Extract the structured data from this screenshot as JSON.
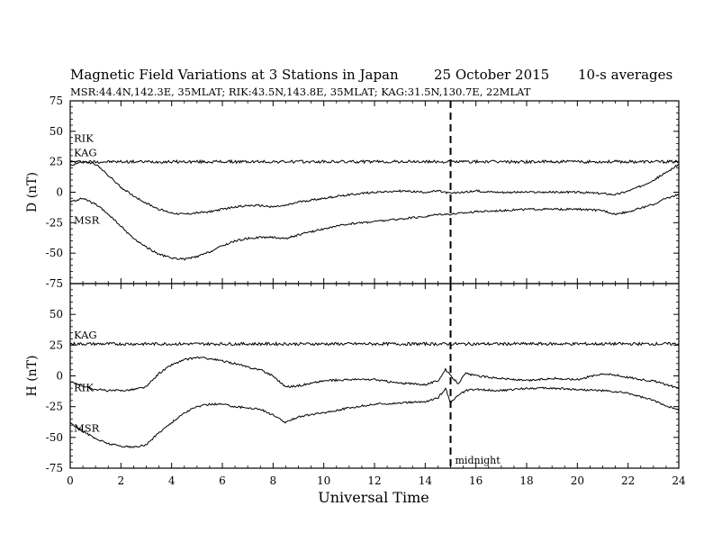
{
  "figure": {
    "title_left": "Magnetic Field Variations at 3 Stations in Japan",
    "title_date": "25 October 2015",
    "title_right": "10-s averages",
    "subtitle": "MSR:44.4N,142.3E, 35MLAT;  RIK:43.5N,143.8E, 35MLAT;  KAG:31.5N,130.7E, 22MLAT"
  },
  "chart_data": [
    {
      "type": "line",
      "title": "",
      "xlabel": "Universal Time",
      "ylabel": "D (nT)",
      "xlim": [
        0,
        24
      ],
      "ylim": [
        -75,
        75
      ],
      "x_ticks": [
        0,
        2,
        4,
        6,
        8,
        10,
        12,
        14,
        16,
        18,
        20,
        22,
        24
      ],
      "y_ticks": [
        75,
        50,
        25,
        0,
        -25,
        -50,
        -75
      ],
      "annotation": {
        "x": 15,
        "style": "dashed vertical line"
      },
      "series": [
        {
          "name": "KAG",
          "x": [
            0,
            1,
            2,
            3,
            4,
            5,
            6,
            7,
            8,
            9,
            10,
            11,
            12,
            13,
            14,
            15,
            16,
            17,
            18,
            19,
            20,
            21,
            22,
            23,
            24
          ],
          "values": [
            25,
            25,
            25,
            25,
            25,
            25,
            25,
            25,
            25,
            25,
            25,
            25,
            25,
            25,
            25,
            25,
            25,
            25,
            25,
            25,
            25,
            25,
            25,
            25,
            25
          ]
        },
        {
          "name": "RIK",
          "x": [
            0,
            0.5,
            1,
            1.5,
            2,
            2.5,
            3,
            3.5,
            4,
            4.5,
            5,
            5.5,
            6,
            6.5,
            7,
            7.5,
            8,
            8.5,
            9,
            10,
            11,
            12,
            13,
            14,
            14.5,
            15,
            15.5,
            16,
            17,
            18,
            19,
            20,
            21,
            21.5,
            22,
            22.5,
            23,
            23.5,
            24
          ],
          "values": [
            22,
            25,
            23,
            14,
            4,
            -3,
            -9,
            -14,
            -17,
            -18,
            -17,
            -16,
            -14,
            -12,
            -11,
            -11,
            -12,
            -11,
            -8,
            -5,
            -2,
            0,
            1,
            0,
            1,
            -1,
            0,
            1,
            0,
            0,
            0,
            0,
            -1,
            -2,
            1,
            5,
            10,
            16,
            23
          ]
        },
        {
          "name": "MSR",
          "x": [
            0,
            0.5,
            1,
            1.5,
            2,
            2.5,
            3,
            3.5,
            4,
            4.5,
            5,
            5.5,
            6,
            6.5,
            7,
            7.5,
            8,
            8.5,
            9,
            10,
            11,
            12,
            13,
            14,
            14.5,
            15,
            15.5,
            16,
            17,
            18,
            19,
            20,
            21,
            21.5,
            22,
            22.5,
            23,
            23.5,
            24
          ],
          "values": [
            -8,
            -5,
            -10,
            -18,
            -28,
            -38,
            -45,
            -51,
            -54,
            -55,
            -53,
            -49,
            -44,
            -40,
            -38,
            -37,
            -37,
            -38,
            -35,
            -30,
            -26,
            -24,
            -22,
            -20,
            -18,
            -18,
            -17,
            -16,
            -15,
            -14,
            -14,
            -14,
            -15,
            -18,
            -16,
            -13,
            -10,
            -5,
            -2
          ]
        }
      ]
    },
    {
      "type": "line",
      "title": "",
      "xlabel": "Universal Time",
      "ylabel": "H (nT)",
      "xlim": [
        0,
        24
      ],
      "ylim": [
        -75,
        75
      ],
      "x_ticks": [
        0,
        2,
        4,
        6,
        8,
        10,
        12,
        14,
        16,
        18,
        20,
        22,
        24
      ],
      "y_ticks": [
        75,
        50,
        25,
        0,
        -25,
        -50,
        -75
      ],
      "annotation": {
        "x": 15,
        "style": "dashed vertical line",
        "label": "midnight"
      },
      "series": [
        {
          "name": "KAG",
          "x": [
            0,
            1,
            2,
            3,
            4,
            5,
            6,
            7,
            8,
            9,
            10,
            11,
            12,
            13,
            14,
            15,
            16,
            17,
            18,
            19,
            20,
            21,
            22,
            23,
            24
          ],
          "values": [
            26,
            26,
            26,
            26,
            26,
            26,
            26,
            26,
            26,
            26,
            26,
            26,
            26,
            26,
            26,
            26,
            26,
            26,
            26,
            26,
            26,
            26,
            26,
            26,
            26
          ]
        },
        {
          "name": "RIK",
          "x": [
            0,
            0.5,
            1,
            1.5,
            2,
            2.5,
            3,
            3.5,
            4,
            4.5,
            5,
            5.5,
            6,
            6.5,
            7,
            7.5,
            8,
            8.5,
            9,
            10,
            11,
            12,
            13,
            14,
            14.5,
            14.8,
            15,
            15.3,
            15.6,
            16,
            17,
            18,
            19,
            20,
            21,
            22,
            22.5,
            23,
            23.5,
            24
          ],
          "values": [
            -5,
            -8,
            -11,
            -12,
            -12,
            -11,
            -9,
            2,
            9,
            13,
            15,
            14,
            12,
            10,
            7,
            5,
            0,
            -9,
            -8,
            -4,
            -3,
            -3,
            -6,
            -7,
            -4,
            5,
            0,
            -6,
            2,
            0,
            -2,
            -4,
            -2,
            -3,
            2,
            -1,
            -3,
            -4,
            -7,
            -10
          ]
        },
        {
          "name": "MSR",
          "x": [
            0,
            0.5,
            1,
            1.5,
            2,
            2.5,
            3,
            3.5,
            4,
            4.5,
            5,
            5.5,
            6,
            6.5,
            7,
            7.5,
            8,
            8.5,
            9,
            10,
            11,
            12,
            13,
            14,
            14.5,
            14.8,
            15,
            15.3,
            15.6,
            16,
            17,
            18,
            19,
            20,
            21,
            22,
            22.5,
            23,
            23.5,
            24
          ],
          "values": [
            -38,
            -45,
            -51,
            -55,
            -57,
            -58,
            -56,
            -46,
            -38,
            -30,
            -25,
            -23,
            -23,
            -25,
            -26,
            -27,
            -32,
            -38,
            -33,
            -30,
            -26,
            -23,
            -22,
            -21,
            -18,
            -10,
            -22,
            -16,
            -12,
            -11,
            -12,
            -10,
            -10,
            -11,
            -12,
            -14,
            -17,
            -20,
            -24,
            -28
          ]
        }
      ]
    }
  ]
}
